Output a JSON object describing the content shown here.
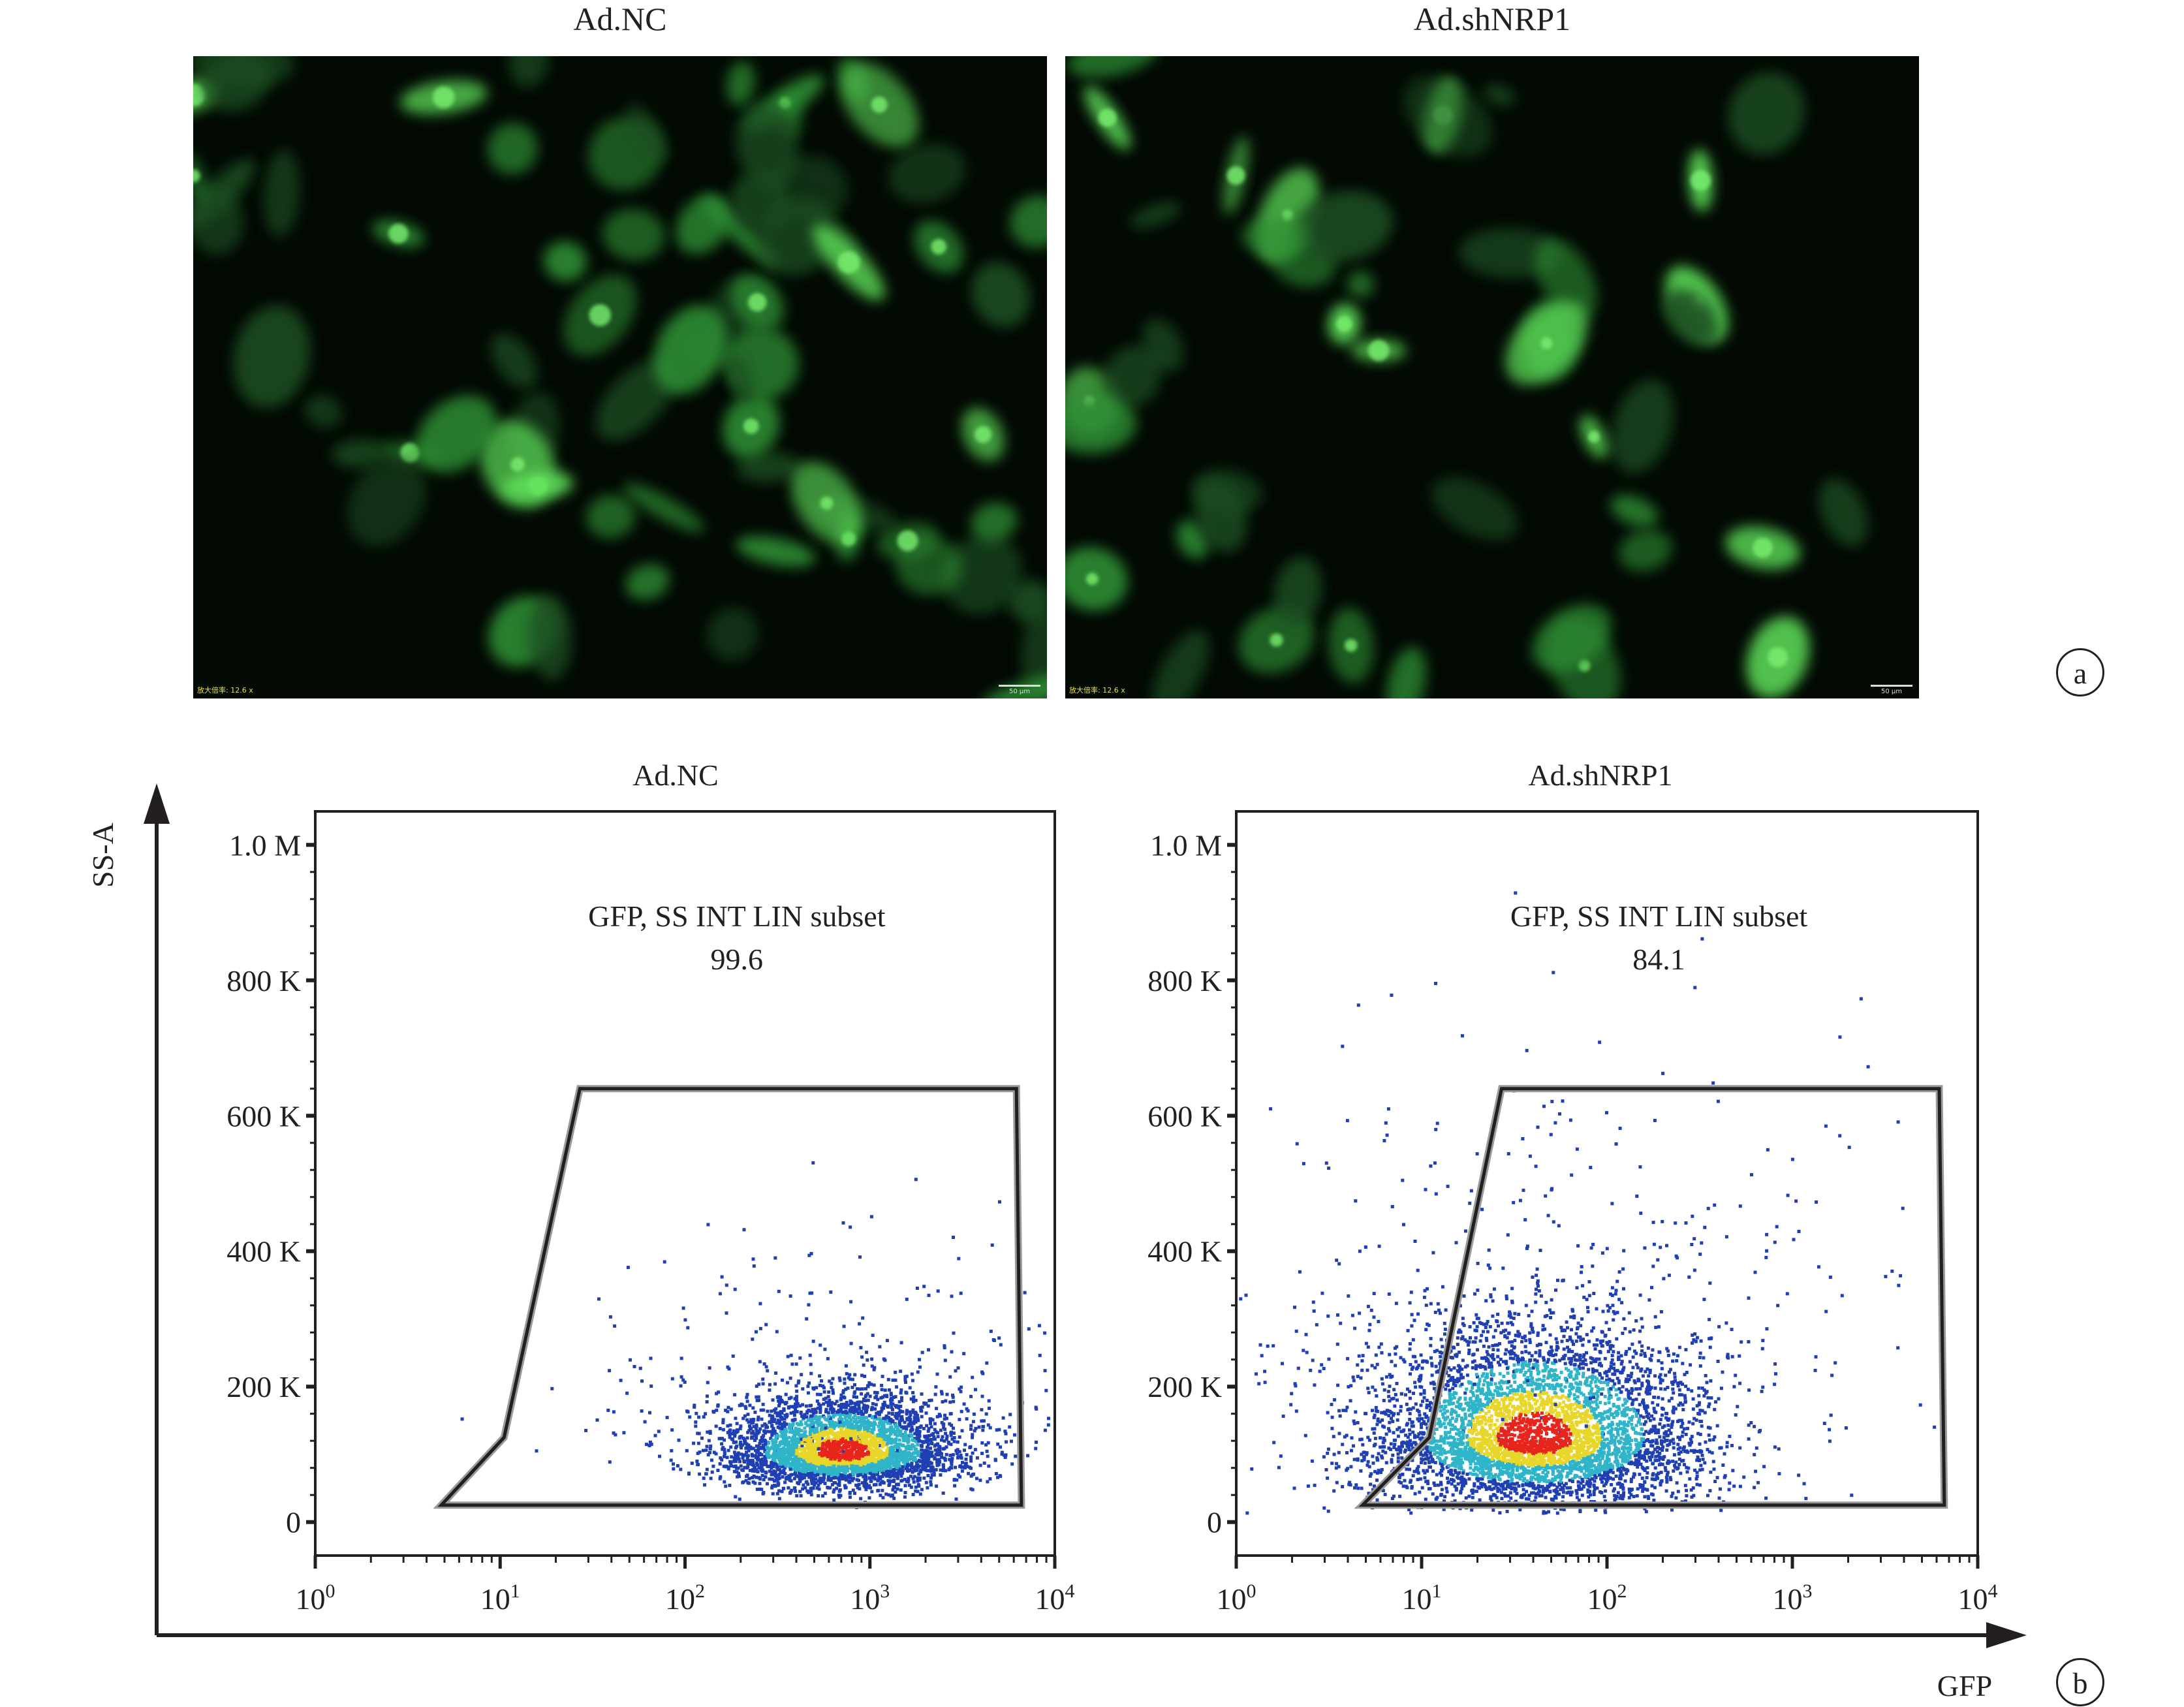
{
  "panel_a": {
    "letter": "a",
    "images": [
      {
        "title": "Ad.NC",
        "magnification": "放大倍率: 12.6 x",
        "scale_bar": "50 μm"
      },
      {
        "title": "Ad.shNRP1",
        "magnification": "放大倍率: 12.6 x",
        "scale_bar": "50 μm"
      }
    ]
  },
  "panel_b": {
    "letter": "b",
    "y_axis_label": "SS-A",
    "x_axis_label": "GFP",
    "colors": {
      "low": "#1f3fb3",
      "mid": "#2fb4c8",
      "high": "#e8d62a",
      "peak": "#e8251c",
      "gate": "#231f20"
    }
  },
  "chart_data": [
    {
      "type": "scatter",
      "title": "Ad.NC",
      "xlabel": "GFP",
      "ylabel": "SS-A",
      "x_scale": "log",
      "xlim": [
        1,
        10000
      ],
      "ylim": [
        0,
        1000000
      ],
      "x_tick_labels": [
        "10^0",
        "10^1",
        "10^2",
        "10^3",
        "10^4"
      ],
      "y_tick_labels": [
        "0",
        "200 K",
        "400 K",
        "600 K",
        "800 K",
        "1.0 M"
      ],
      "y_ticks": [
        0,
        200000,
        400000,
        600000,
        800000,
        1000000
      ],
      "gate": {
        "name": "GFP, SS INT LIN subset",
        "value": "99.6",
        "polygon": [
          [
            4.8,
            25000
          ],
          [
            10.5,
            125000
          ],
          [
            27,
            640000
          ],
          [
            6200,
            640000
          ],
          [
            6600,
            25000
          ]
        ]
      },
      "density": {
        "x_center": 700,
        "y_center": 105000,
        "x_spread_decades": 0.32,
        "y_spread": 28000,
        "n_points": 4000
      }
    },
    {
      "type": "scatter",
      "title": "Ad.shNRP1",
      "xlabel": "GFP",
      "ylabel": "SS-A",
      "x_scale": "log",
      "xlim": [
        1,
        10000
      ],
      "ylim": [
        0,
        1000000
      ],
      "x_tick_labels": [
        "10^0",
        "10^1",
        "10^2",
        "10^3",
        "10^4"
      ],
      "y_tick_labels": [
        "0",
        "200 K",
        "400 K",
        "600 K",
        "800 K",
        "1.0 M"
      ],
      "y_ticks": [
        0,
        200000,
        400000,
        600000,
        800000,
        1000000
      ],
      "gate": {
        "name": "GFP, SS INT LIN subset",
        "value": "84.1",
        "polygon": [
          [
            4.8,
            25000
          ],
          [
            11,
            125000
          ],
          [
            27,
            640000
          ],
          [
            6200,
            640000
          ],
          [
            6600,
            25000
          ]
        ]
      },
      "density": {
        "x_center": 40,
        "y_center": 125000,
        "x_spread_decades": 0.45,
        "y_spread": 55000,
        "n_points": 5200
      }
    }
  ]
}
